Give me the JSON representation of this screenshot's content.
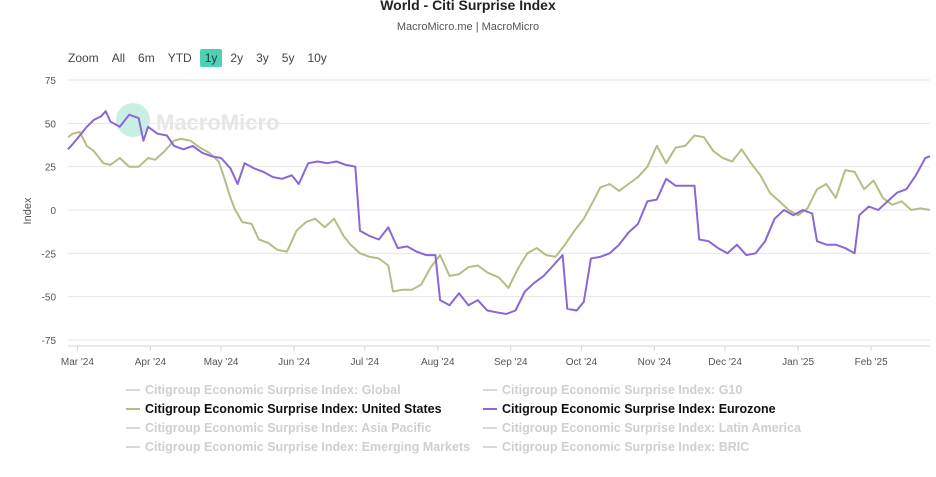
{
  "header": {
    "title": "World - Citi Surprise Index",
    "subtitle": "MacroMicro.me | MacroMicro"
  },
  "watermark": "MacroMicro",
  "zoom": {
    "label": "Zoom",
    "buttons": [
      "All",
      "6m",
      "YTD",
      "1y",
      "2y",
      "3y",
      "5y",
      "10y"
    ],
    "active": "1y"
  },
  "colors": {
    "us": "#b5bd85",
    "eurozone": "#8a66d6",
    "inactive": "#d8d8d8",
    "grid": "#e6e6e6",
    "active_zoom": "#4fd1b5"
  },
  "legend": [
    {
      "label": "Citigroup Economic Surprise Index: Global",
      "active": false
    },
    {
      "label": "Citigroup Economic Surprise Index: G10",
      "active": false
    },
    {
      "label": "Citigroup Economic Surprise Index: United States",
      "active": true
    },
    {
      "label": "Citigroup Economic Surprise Index: Eurozone",
      "active": true
    },
    {
      "label": "Citigroup Economic Surprise Index: Asia Pacific",
      "active": false
    },
    {
      "label": "Citigroup Economic Surprise Index: Latin America",
      "active": false
    },
    {
      "label": "Citigroup Economic Surprise Index: Emerging Markets",
      "active": false
    },
    {
      "label": "Citigroup Economic Surprise Index: BRIC",
      "active": false
    }
  ],
  "chart_data": {
    "type": "line",
    "title": "World - Citi Surprise Index",
    "ylabel": "Index",
    "xlabel": "",
    "ylim": [
      -75,
      75
    ],
    "xlim": [
      "2024-02-26",
      "2025-02-26"
    ],
    "yticks": [
      75,
      50,
      25,
      0,
      -25,
      -50,
      -75
    ],
    "xticks": [
      {
        "date": "2024-03-01",
        "label": "Mar '24"
      },
      {
        "date": "2024-04-01",
        "label": "Apr '24"
      },
      {
        "date": "2024-05-01",
        "label": "May '24"
      },
      {
        "date": "2024-06-01",
        "label": "Jun '24"
      },
      {
        "date": "2024-07-01",
        "label": "Jul '24"
      },
      {
        "date": "2024-08-01",
        "label": "Aug '24"
      },
      {
        "date": "2024-09-01",
        "label": "Sep '24"
      },
      {
        "date": "2024-10-01",
        "label": "Oct '24"
      },
      {
        "date": "2024-11-01",
        "label": "Nov '24"
      },
      {
        "date": "2024-12-01",
        "label": "Dec '24"
      },
      {
        "date": "2025-01-01",
        "label": "Jan '25"
      },
      {
        "date": "2025-02-01",
        "label": "Feb '25"
      }
    ],
    "grid": true,
    "series": [
      {
        "name": "Citigroup Economic Surprise Index: United States",
        "color": "#b5bd85",
        "points": [
          [
            "2024-02-26",
            42
          ],
          [
            "2024-02-28",
            44
          ],
          [
            "2024-03-02",
            45
          ],
          [
            "2024-03-05",
            37
          ],
          [
            "2024-03-08",
            34
          ],
          [
            "2024-03-12",
            27
          ],
          [
            "2024-03-15",
            26
          ],
          [
            "2024-03-19",
            30
          ],
          [
            "2024-03-23",
            25
          ],
          [
            "2024-03-27",
            25
          ],
          [
            "2024-03-31",
            30
          ],
          [
            "2024-04-03",
            29
          ],
          [
            "2024-04-07",
            34
          ],
          [
            "2024-04-11",
            40
          ],
          [
            "2024-04-14",
            41
          ],
          [
            "2024-04-18",
            40
          ],
          [
            "2024-04-22",
            36
          ],
          [
            "2024-04-26",
            33
          ],
          [
            "2024-04-30",
            28
          ],
          [
            "2024-05-02",
            20
          ],
          [
            "2024-05-05",
            7
          ],
          [
            "2024-05-07",
            0
          ],
          [
            "2024-05-10",
            -7
          ],
          [
            "2024-05-14",
            -8
          ],
          [
            "2024-05-17",
            -17
          ],
          [
            "2024-05-21",
            -19
          ],
          [
            "2024-05-25",
            -23
          ],
          [
            "2024-05-29",
            -24
          ],
          [
            "2024-06-02",
            -12
          ],
          [
            "2024-06-06",
            -7
          ],
          [
            "2024-06-10",
            -5
          ],
          [
            "2024-06-14",
            -10
          ],
          [
            "2024-06-18",
            -5
          ],
          [
            "2024-06-22",
            -15
          ],
          [
            "2024-06-25",
            -20
          ],
          [
            "2024-06-29",
            -25
          ],
          [
            "2024-07-03",
            -27
          ],
          [
            "2024-07-07",
            -28
          ],
          [
            "2024-07-11",
            -32
          ],
          [
            "2024-07-13",
            -47
          ],
          [
            "2024-07-17",
            -46
          ],
          [
            "2024-07-21",
            -46
          ],
          [
            "2024-07-25",
            -43
          ],
          [
            "2024-07-29",
            -33
          ],
          [
            "2024-08-02",
            -26
          ],
          [
            "2024-08-06",
            -38
          ],
          [
            "2024-08-10",
            -37
          ],
          [
            "2024-08-14",
            -33
          ],
          [
            "2024-08-18",
            -32
          ],
          [
            "2024-08-22",
            -36
          ],
          [
            "2024-08-27",
            -39
          ],
          [
            "2024-08-31",
            -45
          ],
          [
            "2024-09-04",
            -34
          ],
          [
            "2024-09-08",
            -25
          ],
          [
            "2024-09-12",
            -22
          ],
          [
            "2024-09-16",
            -26
          ],
          [
            "2024-09-20",
            -27
          ],
          [
            "2024-09-24",
            -20
          ],
          [
            "2024-09-28",
            -12
          ],
          [
            "2024-10-02",
            -5
          ],
          [
            "2024-10-06",
            5
          ],
          [
            "2024-10-09",
            13
          ],
          [
            "2024-10-13",
            15
          ],
          [
            "2024-10-17",
            11
          ],
          [
            "2024-10-21",
            15
          ],
          [
            "2024-10-25",
            19
          ],
          [
            "2024-10-29",
            25
          ],
          [
            "2024-11-02",
            37
          ],
          [
            "2024-11-06",
            27
          ],
          [
            "2024-11-10",
            36
          ],
          [
            "2024-11-14",
            37
          ],
          [
            "2024-11-18",
            43
          ],
          [
            "2024-11-22",
            42
          ],
          [
            "2024-11-26",
            34
          ],
          [
            "2024-11-30",
            30
          ],
          [
            "2024-12-04",
            28
          ],
          [
            "2024-12-08",
            35
          ],
          [
            "2024-12-12",
            27
          ],
          [
            "2024-12-16",
            20
          ],
          [
            "2024-12-20",
            10
          ],
          [
            "2024-12-24",
            5
          ],
          [
            "2024-12-28",
            0
          ],
          [
            "2025-01-01",
            -3
          ],
          [
            "2025-01-05",
            1
          ],
          [
            "2025-01-09",
            12
          ],
          [
            "2025-01-13",
            15
          ],
          [
            "2025-01-17",
            7
          ],
          [
            "2025-01-21",
            23
          ],
          [
            "2025-01-25",
            22
          ],
          [
            "2025-01-29",
            12
          ],
          [
            "2025-02-02",
            17
          ],
          [
            "2025-02-06",
            7
          ],
          [
            "2025-02-10",
            3
          ],
          [
            "2025-02-14",
            5
          ],
          [
            "2025-02-18",
            0
          ],
          [
            "2025-02-22",
            1
          ],
          [
            "2025-02-26",
            0
          ]
        ]
      },
      {
        "name": "Citigroup Economic Surprise Index: Eurozone",
        "color": "#8a66d6",
        "points": [
          [
            "2024-02-26",
            35
          ],
          [
            "2024-02-28",
            38
          ],
          [
            "2024-03-02",
            43
          ],
          [
            "2024-03-05",
            48
          ],
          [
            "2024-03-08",
            52
          ],
          [
            "2024-03-11",
            54
          ],
          [
            "2024-03-13",
            57
          ],
          [
            "2024-03-15",
            51
          ],
          [
            "2024-03-19",
            48
          ],
          [
            "2024-03-23",
            55
          ],
          [
            "2024-03-27",
            53
          ],
          [
            "2024-03-29",
            40
          ],
          [
            "2024-03-31",
            48
          ],
          [
            "2024-04-04",
            44
          ],
          [
            "2024-04-08",
            43
          ],
          [
            "2024-04-11",
            37
          ],
          [
            "2024-04-15",
            35
          ],
          [
            "2024-04-19",
            37
          ],
          [
            "2024-04-23",
            33
          ],
          [
            "2024-04-27",
            31
          ],
          [
            "2024-05-01",
            30
          ],
          [
            "2024-05-05",
            24
          ],
          [
            "2024-05-08",
            15
          ],
          [
            "2024-05-11",
            27
          ],
          [
            "2024-05-15",
            24
          ],
          [
            "2024-05-19",
            22
          ],
          [
            "2024-05-23",
            19
          ],
          [
            "2024-05-27",
            18
          ],
          [
            "2024-05-31",
            20
          ],
          [
            "2024-06-03",
            15
          ],
          [
            "2024-06-07",
            27
          ],
          [
            "2024-06-11",
            28
          ],
          [
            "2024-06-15",
            27
          ],
          [
            "2024-06-19",
            28
          ],
          [
            "2024-06-23",
            26
          ],
          [
            "2024-06-27",
            25
          ],
          [
            "2024-06-29",
            -12
          ],
          [
            "2024-07-03",
            -15
          ],
          [
            "2024-07-07",
            -17
          ],
          [
            "2024-07-11",
            -10
          ],
          [
            "2024-07-15",
            -22
          ],
          [
            "2024-07-19",
            -21
          ],
          [
            "2024-07-23",
            -24
          ],
          [
            "2024-07-27",
            -26
          ],
          [
            "2024-07-31",
            -26
          ],
          [
            "2024-08-02",
            -52
          ],
          [
            "2024-08-06",
            -55
          ],
          [
            "2024-08-10",
            -48
          ],
          [
            "2024-08-14",
            -55
          ],
          [
            "2024-08-18",
            -52
          ],
          [
            "2024-08-22",
            -58
          ],
          [
            "2024-08-26",
            -59
          ],
          [
            "2024-08-30",
            -60
          ],
          [
            "2024-09-03",
            -58
          ],
          [
            "2024-09-07",
            -47
          ],
          [
            "2024-09-11",
            -42
          ],
          [
            "2024-09-15",
            -38
          ],
          [
            "2024-09-19",
            -32
          ],
          [
            "2024-09-23",
            -26
          ],
          [
            "2024-09-25",
            -57
          ],
          [
            "2024-09-29",
            -58
          ],
          [
            "2024-10-02",
            -53
          ],
          [
            "2024-10-05",
            -28
          ],
          [
            "2024-10-09",
            -27
          ],
          [
            "2024-10-13",
            -25
          ],
          [
            "2024-10-17",
            -20
          ],
          [
            "2024-10-21",
            -13
          ],
          [
            "2024-10-25",
            -8
          ],
          [
            "2024-10-29",
            5
          ],
          [
            "2024-11-02",
            6
          ],
          [
            "2024-11-06",
            18
          ],
          [
            "2024-11-10",
            14
          ],
          [
            "2024-11-14",
            14
          ],
          [
            "2024-11-18",
            14
          ],
          [
            "2024-11-20",
            -17
          ],
          [
            "2024-11-24",
            -18
          ],
          [
            "2024-11-28",
            -22
          ],
          [
            "2024-12-02",
            -25
          ],
          [
            "2024-12-06",
            -20
          ],
          [
            "2024-12-10",
            -26
          ],
          [
            "2024-12-14",
            -25
          ],
          [
            "2024-12-18",
            -18
          ],
          [
            "2024-12-22",
            -5
          ],
          [
            "2024-12-26",
            0
          ],
          [
            "2024-12-30",
            -3
          ],
          [
            "2025-01-03",
            0
          ],
          [
            "2025-01-07",
            -2
          ],
          [
            "2025-01-09",
            -18
          ],
          [
            "2025-01-13",
            -20
          ],
          [
            "2025-01-17",
            -20
          ],
          [
            "2025-01-21",
            -22
          ],
          [
            "2025-01-25",
            -25
          ],
          [
            "2025-01-27",
            -3
          ],
          [
            "2025-01-31",
            2
          ],
          [
            "2025-02-04",
            0
          ],
          [
            "2025-02-08",
            5
          ],
          [
            "2025-02-12",
            10
          ],
          [
            "2025-02-16",
            12
          ],
          [
            "2025-02-20",
            20
          ],
          [
            "2025-02-24",
            30
          ],
          [
            "2025-02-26",
            31
          ]
        ]
      }
    ]
  }
}
